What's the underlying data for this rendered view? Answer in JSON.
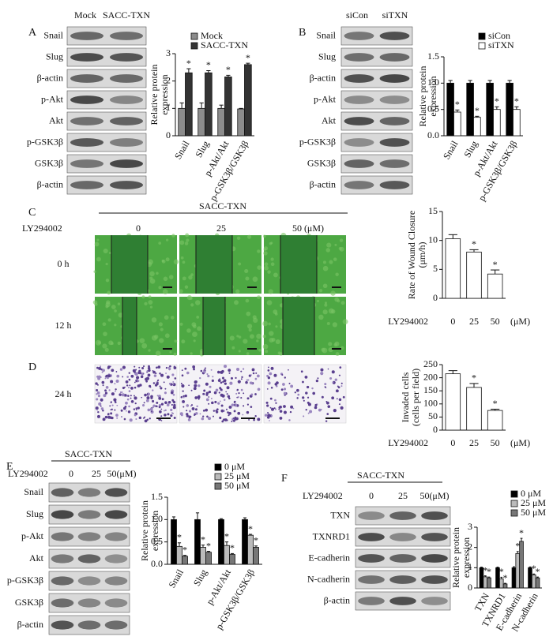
{
  "panels": {
    "A": {
      "label": "A",
      "columns": [
        "Mock",
        "SACC-TXN"
      ],
      "rows": [
        "Snail",
        "Slug",
        "β-actin",
        "p-Akt",
        "Akt",
        "p-GSK3β",
        "GSK3β",
        "β-actin"
      ]
    },
    "B": {
      "label": "B",
      "columns": [
        "siCon",
        "siTXN"
      ],
      "rows": [
        "Snail",
        "Slug",
        "β-actin",
        "p-Akt",
        "Akt",
        "p-GSK3β",
        "GSK3β",
        "β-actin"
      ]
    },
    "C": {
      "label": "C",
      "group": "SACC-TXN",
      "treatment": "LY294002",
      "doses": [
        "0",
        "25",
        "50 (μM)"
      ],
      "rows": [
        "0 h",
        "12 h"
      ]
    },
    "D": {
      "label": "D",
      "rows": [
        "24 h"
      ]
    },
    "E": {
      "label": "E",
      "group": "SACC-TXN",
      "treatment": "LY294002",
      "doses": [
        "0",
        "25",
        "50(μM)"
      ],
      "rows": [
        "Snail",
        "Slug",
        "p-Akt",
        "Akt",
        "p-GSK3β",
        "GSK3β",
        "β-actin"
      ]
    },
    "F": {
      "label": "F",
      "group": "SACC-TXN",
      "treatment": "LY294002",
      "doses": [
        "0",
        "25",
        "50(μM)"
      ],
      "rows": [
        "TXN",
        "TXNRD1",
        "E-cadherin",
        "N-cadherin",
        "β-actin"
      ]
    }
  },
  "chart_data": [
    {
      "type": "bar",
      "ylabel": [
        "Relative protein",
        "expression"
      ],
      "categories": [
        "Snail",
        "Slug",
        "p-Akt/Akt",
        "p-GSK3β/GSK3β"
      ],
      "series": [
        {
          "name": "Mock",
          "color": "#8c8c8c",
          "values": [
            1.0,
            1.0,
            1.0,
            0.98
          ],
          "errors": [
            0.2,
            0.2,
            0.12,
            0.02
          ]
        },
        {
          "name": "SACC-TXN",
          "color": "#333333",
          "values": [
            2.3,
            2.3,
            2.15,
            2.6
          ],
          "errors": [
            0.15,
            0.08,
            0.06,
            0.05
          ],
          "significance": [
            "*",
            "*",
            "*",
            "*"
          ]
        }
      ],
      "ylim": [
        0,
        3
      ],
      "yticks": [
        0,
        1,
        2,
        3
      ]
    },
    {
      "type": "bar",
      "ylabel": [
        "Relative protein",
        "expression"
      ],
      "categories": [
        "Snail",
        "Slug",
        "p-Akt/Akt",
        "p-GSK3β/GSK3β"
      ],
      "series": [
        {
          "name": "siCon",
          "color": "#000000",
          "values": [
            1.0,
            1.0,
            1.0,
            1.0
          ],
          "errors": [
            0.05,
            0.05,
            0.05,
            0.05
          ]
        },
        {
          "name": "siTXN",
          "color": "#ffffff",
          "values": [
            0.45,
            0.35,
            0.5,
            0.5
          ],
          "errors": [
            0.04,
            0.02,
            0.05,
            0.05
          ],
          "significance": [
            "*",
            "*",
            "*",
            "*"
          ]
        }
      ],
      "ylim": [
        0,
        1.5
      ],
      "yticks": [
        {
          "value": 0,
          "label": "0.0"
        },
        0.5,
        {
          "value": 1,
          "label": "1.0"
        },
        1.5
      ]
    },
    {
      "type": "bar",
      "ylabel": [
        "Rate of Wound Closure",
        "(μm/h)"
      ],
      "xlabel": "LY294002",
      "x_unit": "(μM)",
      "categories": [
        "0",
        "25",
        "50"
      ],
      "color": "#ffffff",
      "values": [
        10.3,
        8.0,
        4.2
      ],
      "errors": [
        0.7,
        0.4,
        0.7
      ],
      "significance": [
        null,
        "*",
        "*"
      ],
      "ylim": [
        0,
        15
      ],
      "yticks": [
        0,
        5,
        10,
        15
      ]
    },
    {
      "type": "bar",
      "ylabel": [
        "Invaded cells",
        "(cells per field)"
      ],
      "xlabel": "LY294002",
      "x_unit": "(μM)",
      "categories": [
        "0",
        "25",
        "50"
      ],
      "color": "#ffffff",
      "values": [
        215,
        163,
        75
      ],
      "errors": [
        12,
        15,
        5
      ],
      "significance": [
        null,
        "*",
        "*"
      ],
      "ylim": [
        0,
        250
      ],
      "yticks": [
        0,
        50,
        100,
        150,
        200,
        250
      ]
    },
    {
      "type": "bar",
      "ylabel": [
        "Relative protein",
        "expression"
      ],
      "categories": [
        "Snail",
        "Slug",
        "p-Akt/Akt",
        "p-GSK3β/GSK3β"
      ],
      "series": [
        {
          "name": "0 μM",
          "color": "#000000",
          "values": [
            1.0,
            1.0,
            1.0,
            1.0
          ],
          "errors": [
            0.06,
            0.15,
            0.02,
            0.04
          ]
        },
        {
          "name": "25 μM",
          "color": "#bbbbbb",
          "values": [
            0.4,
            0.38,
            0.42,
            0.65
          ],
          "errors": [
            0.08,
            0.05,
            0.08,
            0.02
          ],
          "significance": [
            "*",
            "*",
            "*",
            "*"
          ]
        },
        {
          "name": "50 μM",
          "color": "#777777",
          "values": [
            0.18,
            0.27,
            0.22,
            0.38
          ],
          "errors": [
            0.02,
            0.02,
            0.02,
            0.03
          ],
          "significance": [
            "*",
            "*",
            "*",
            "*"
          ]
        }
      ],
      "ylim": [
        0,
        1.5
      ],
      "yticks": [
        {
          "value": 0,
          "label": "0.0"
        },
        0.5,
        {
          "value": 1,
          "label": "1.0"
        },
        1.5
      ]
    },
    {
      "type": "bar",
      "ylabel": [
        "Relative protein",
        "expression"
      ],
      "categories": [
        "TXN",
        "TXNRD1",
        "E-cadherin",
        "N-cadherin"
      ],
      "series": [
        {
          "name": "0 μM",
          "color": "#000000",
          "values": [
            1.0,
            1.0,
            1.0,
            1.0
          ],
          "errors": [
            0.03,
            0.03,
            0.05,
            0.04
          ]
        },
        {
          "name": "25 μM",
          "color": "#bbbbbb",
          "values": [
            0.55,
            0.45,
            1.7,
            0.65
          ],
          "errors": [
            0.05,
            0.08,
            0.1,
            0.04
          ],
          "significance": [
            "*",
            "*",
            "*",
            "*"
          ]
        },
        {
          "name": "50 μM",
          "color": "#777777",
          "values": [
            0.5,
            0.2,
            2.3,
            0.5
          ],
          "errors": [
            0.04,
            0.03,
            0.15,
            0.04
          ],
          "significance": [
            "*",
            "*",
            "*",
            "*"
          ]
        }
      ],
      "ylim": [
        0,
        3
      ],
      "yticks": [
        0,
        1,
        2,
        3
      ]
    }
  ]
}
